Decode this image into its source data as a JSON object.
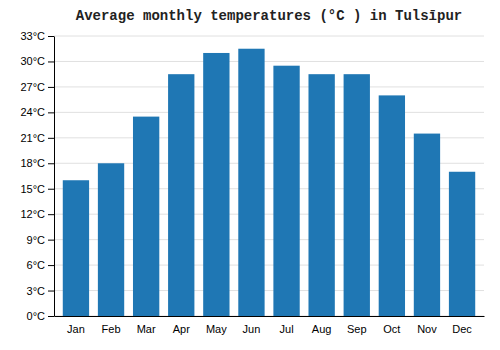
{
  "chart_data": {
    "type": "bar",
    "title": "Average monthly temperatures (°C ) in Tulsīpur",
    "categories": [
      "Jan",
      "Feb",
      "Mar",
      "Apr",
      "May",
      "Jun",
      "Jul",
      "Aug",
      "Sep",
      "Oct",
      "Nov",
      "Dec"
    ],
    "values": [
      16,
      18,
      23.5,
      28.5,
      31,
      31.5,
      29.5,
      28.5,
      28.5,
      26,
      21.5,
      17
    ],
    "ylim": [
      0,
      33
    ],
    "yticks": [
      {
        "value": 0,
        "label": "0°C"
      },
      {
        "value": 3,
        "label": "3°C"
      },
      {
        "value": 6,
        "label": "6°C"
      },
      {
        "value": 9,
        "label": "9°C"
      },
      {
        "value": 12,
        "label": "12°C"
      },
      {
        "value": 15,
        "label": "15°C"
      },
      {
        "value": 18,
        "label": "18°C"
      },
      {
        "value": 21,
        "label": "21°C"
      },
      {
        "value": 24,
        "label": "24°C"
      },
      {
        "value": 27,
        "label": "27°C"
      },
      {
        "value": 30,
        "label": "30°C"
      },
      {
        "value": 33,
        "label": "33°C"
      }
    ],
    "grid": true
  }
}
